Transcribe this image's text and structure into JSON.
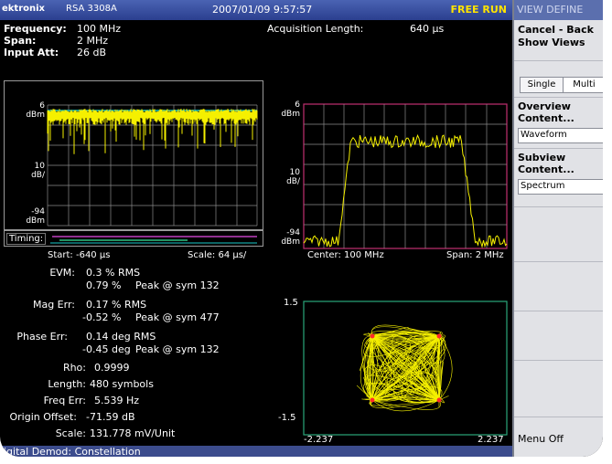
{
  "header": {
    "brand": "ektronix",
    "model": "RSA 3308A",
    "datetime": "2007/01/09 9:57:57",
    "run_state": "FREE RUN"
  },
  "side_menu": {
    "title": "VIEW DEFINE",
    "cancel_back": "Cancel - Back",
    "show_views": "Show Views",
    "single": "Single",
    "multi": "Multi",
    "overview_content": "Overview Content...",
    "overview_value": "Waveform",
    "subview_content": "Subview Content...",
    "subview_value": "Spectrum",
    "menu_off": "Menu Off"
  },
  "readouts": {
    "frequency_label": "Frequency:",
    "frequency_value": "100 MHz",
    "span_label": "Span:",
    "span_value": "2 MHz",
    "input_att_label": "Input Att:",
    "input_att_value": "26 dB",
    "acq_length_label": "Acquisition Length:",
    "acq_length_value": "640 µs"
  },
  "waveform": {
    "top": "6",
    "top_unit": "dBm",
    "scale": "10",
    "scale_unit": "dB/",
    "bottom": "-94",
    "bottom_unit": "dBm",
    "timing_label": "Timing:",
    "start": "Start: -640 µs",
    "scale_time": "Scale: 64 µs/"
  },
  "spectrum": {
    "top": "6",
    "top_unit": "dBm",
    "scale": "10",
    "scale_unit": "dB/",
    "bottom": "-94",
    "bottom_unit": "dBm",
    "center": "Center: 100 MHz",
    "span": "Span: 2 MHz"
  },
  "constellation": {
    "y_top": "1.5",
    "y_bottom": "-1.5",
    "x_left": "-2.237",
    "x_right": "2.237"
  },
  "demod": {
    "evm_label": "EVM:",
    "evm_rms": "0.3   % RMS",
    "evm_peak": "0.79 %",
    "evm_peak_sym": "Peak @ sym 132",
    "mag_label": "Mag Err:",
    "mag_rms": "0.17 % RMS",
    "mag_peak": "-0.52 %",
    "mag_peak_sym": "Peak @ sym 477",
    "phase_label": "Phase Err:",
    "phase_rms": "0.14 deg RMS",
    "phase_peak": "-0.45 deg",
    "phase_peak_sym": "Peak @ sym 132",
    "rho_label": "Rho:",
    "rho_value": "0.9999",
    "length_label": "Length:",
    "length_value": "480 symbols",
    "freq_label": "Freq Err:",
    "freq_value": "5.539 Hz",
    "origin_label": "Origin Offset:",
    "origin_value": "-71.59 dB",
    "scale_label": "Scale:",
    "scale_value": "131.778 mV/Unit"
  },
  "status_bar": "igital Demod: Constellation"
}
